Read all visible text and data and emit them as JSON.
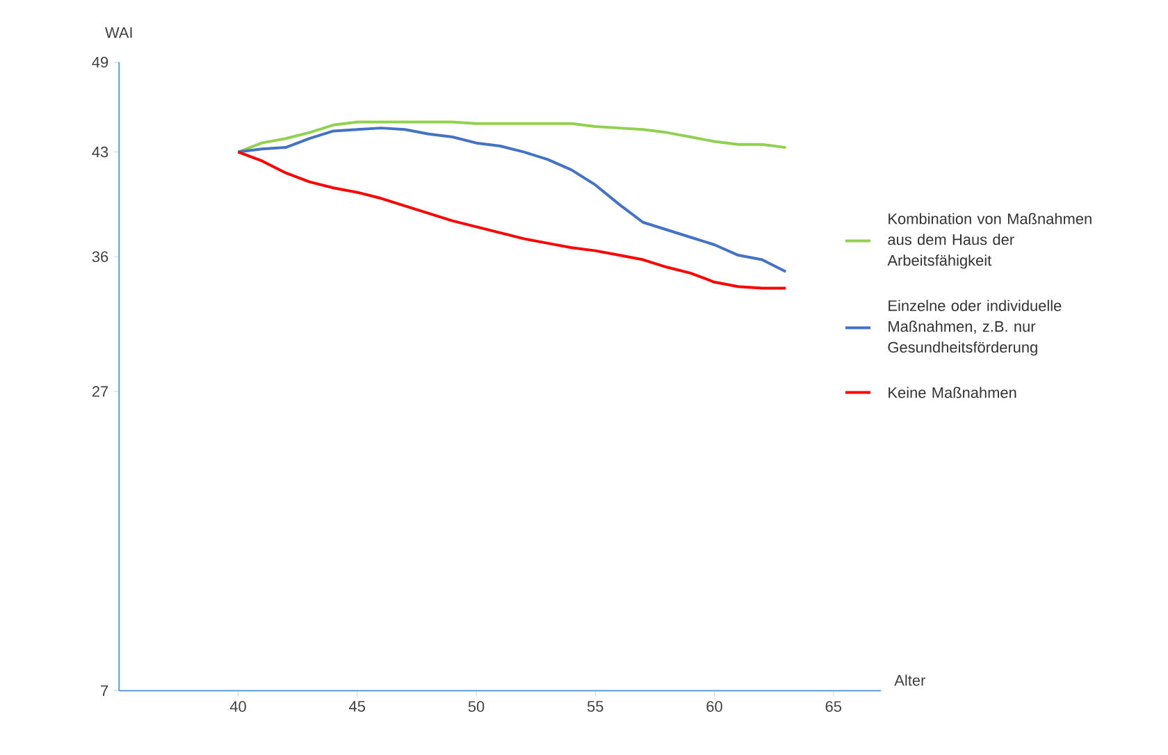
{
  "chart_data": {
    "type": "line",
    "xlabel": "Alter",
    "ylabel": "WAI",
    "xlim": [
      35,
      67
    ],
    "xticks": [
      40,
      45,
      50,
      55,
      60,
      65
    ],
    "ylim": [
      7,
      49
    ],
    "yticks": [
      7,
      27,
      36,
      43,
      49
    ],
    "x": [
      40,
      41,
      42,
      43,
      44,
      45,
      46,
      47,
      48,
      49,
      50,
      51,
      52,
      53,
      54,
      55,
      56,
      57,
      58,
      59,
      60,
      61,
      62,
      63
    ],
    "series": [
      {
        "name": "Kombination von Maßnahmen aus dem Haus der Arbeitsfähigkeit",
        "color": "#92d050",
        "values": [
          43,
          43.6,
          43.9,
          44.3,
          44.8,
          45.0,
          45.0,
          45.0,
          45.0,
          45.0,
          44.9,
          44.9,
          44.9,
          44.9,
          44.9,
          44.7,
          44.6,
          44.5,
          44.3,
          44.0,
          43.7,
          43.5,
          43.5,
          43.3
        ]
      },
      {
        "name": "Einzelne oder individuelle Maßnahmen, z.B. nur Gesundheitsförderung",
        "color": "#4472c4",
        "values": [
          43,
          43.2,
          43.3,
          43.9,
          44.4,
          44.5,
          44.6,
          44.5,
          44.2,
          44.0,
          43.6,
          43.4,
          43.0,
          42.5,
          41.8,
          40.8,
          39.5,
          38.3,
          37.8,
          37.3,
          36.8,
          36.1,
          35.8,
          35.0
        ]
      },
      {
        "name": "Keine Maßnahmen",
        "color": "#ff0000",
        "values": [
          43,
          42.4,
          41.6,
          41.0,
          40.6,
          40.3,
          39.9,
          39.4,
          38.9,
          38.4,
          38.0,
          37.6,
          37.2,
          36.9,
          36.6,
          36.4,
          36.1,
          35.8,
          35.3,
          34.9,
          34.3,
          34.0,
          33.9,
          33.9
        ]
      }
    ],
    "grid": false,
    "legend": "right",
    "marker": "none",
    "line_style": "solid"
  }
}
